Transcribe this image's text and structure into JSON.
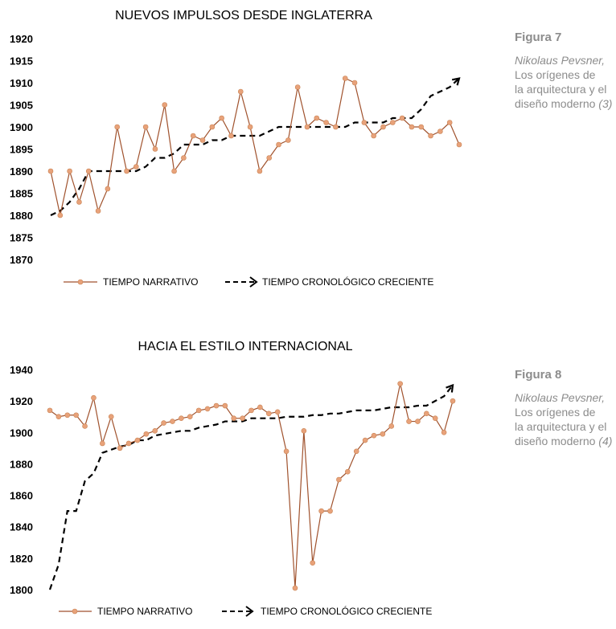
{
  "colors": {
    "narrative": "#A0522D",
    "marker": "#E8A27A",
    "chronological": "#000000",
    "caption": "#8C8C8C"
  },
  "captions": [
    {
      "figure": "Figura 7",
      "author": "Nikolaus Pevsner,",
      "lines": [
        "Los orígenes de",
        "la arquitectura y el",
        "diseño moderno "
      ],
      "num": "(3)"
    },
    {
      "figure": "Figura 8",
      "author": "Nikolaus Pevsner,",
      "lines": [
        "Los orígenes de",
        "la arquitectura y el",
        "diseño moderno "
      ],
      "num": "(4)"
    }
  ],
  "chart_data": [
    {
      "type": "line",
      "title": "NUEVOS IMPULSOS DESDE INGLATERRA",
      "xlabel": "",
      "ylabel": "",
      "ylim": [
        1870,
        1920
      ],
      "yticks": [
        1920,
        1915,
        1910,
        1905,
        1900,
        1895,
        1890,
        1885,
        1880,
        1875,
        1870
      ],
      "legend": "bottom",
      "series": [
        {
          "name": "TIEMPO NARRATIVO",
          "values": [
            1890,
            1880,
            1890,
            1883,
            1890,
            1881,
            1886,
            1900,
            1890,
            1891,
            1900,
            1895,
            1905,
            1890,
            1893,
            1898,
            1897,
            1900,
            1902,
            1898,
            1908,
            1900,
            1890,
            1893,
            1896,
            1897,
            1909,
            1900,
            1902,
            1901,
            1900,
            1911,
            1910,
            1901,
            1898,
            1900,
            1901,
            1902,
            1900,
            1900,
            1898,
            1899,
            1901,
            1896
          ]
        },
        {
          "name": "TIEMPO CRONOLÓGICO CRECIENTE",
          "values": [
            1880,
            1881,
            1883,
            1886,
            1890,
            1890,
            1890,
            1890,
            1890,
            1890,
            1891,
            1893,
            1893,
            1894,
            1896,
            1896,
            1896,
            1897,
            1897,
            1898,
            1898,
            1898,
            1898,
            1899,
            1900,
            1900,
            1900,
            1900,
            1900,
            1900,
            1900,
            1900,
            1901,
            1901,
            1901,
            1901,
            1902,
            1902,
            1902,
            1904,
            1907,
            1908,
            1909,
            1911
          ]
        }
      ]
    },
    {
      "type": "line",
      "title": "HACIA EL ESTILO INTERNACIONAL",
      "xlabel": "",
      "ylabel": "",
      "ylim": [
        1800,
        1940
      ],
      "yticks": [
        1940,
        1920,
        1900,
        1880,
        1860,
        1840,
        1820,
        1800
      ],
      "legend": "bottom",
      "series": [
        {
          "name": "TIEMPO NARRATIVO",
          "values": [
            1914,
            1910,
            1911,
            1911,
            1904,
            1922,
            1893,
            1910,
            1890,
            1893,
            1895,
            1899,
            1901,
            1906,
            1907,
            1909,
            1910,
            1914,
            1915,
            1917,
            1917,
            1909,
            1909,
            1914,
            1916,
            1912,
            1913,
            1888,
            1801,
            1901,
            1817,
            1850,
            1850,
            1870,
            1875,
            1888,
            1895,
            1898,
            1899,
            1904,
            1931,
            1907,
            1907,
            1912,
            1909,
            1900,
            1920
          ]
        },
        {
          "name": "TIEMPO CRONOLÓGICO CRECIENTE",
          "values": [
            1800,
            1816,
            1850,
            1850,
            1869,
            1874,
            1887,
            1889,
            1891,
            1892,
            1895,
            1895,
            1898,
            1899,
            1900,
            1901,
            1901,
            1903,
            1904,
            1905,
            1907,
            1907,
            1907,
            1909,
            1909,
            1909,
            1909,
            1910,
            1910,
            1910,
            1911,
            1911,
            1912,
            1912,
            1913,
            1914,
            1914,
            1914,
            1915,
            1916,
            1916,
            1916,
            1917,
            1917,
            1920,
            1923,
            1930
          ]
        }
      ]
    }
  ]
}
